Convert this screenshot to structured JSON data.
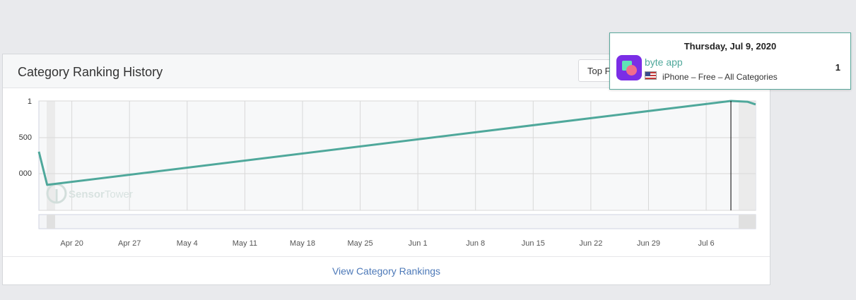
{
  "card": {
    "title": "Category Ranking History",
    "filter_button_label": "Top F",
    "footer_link": "View Category Rankings"
  },
  "tooltip": {
    "date": "Thursday, Jul 9, 2020",
    "app_name": "byte app",
    "subtitle": "iPhone – Free – All Categories",
    "rank": "1",
    "icon": "byte-app-icon",
    "flag_icon": "us-flag-icon"
  },
  "watermark": {
    "brand_a": "Sensor",
    "brand_b": "Tower"
  },
  "colors": {
    "line": "#4fa89b",
    "link": "#4d79b8",
    "tooltip_border": "#5aa89c"
  },
  "chart_data": {
    "type": "line",
    "x_tick_labels": [
      "Apr 20",
      "Apr 27",
      "May 4",
      "May 11",
      "May 18",
      "May 25",
      "Jun 1",
      "Jun 8",
      "Jun 15",
      "Jun 22",
      "Jun 29",
      "Jul 6"
    ],
    "y_tick_labels": [
      "1",
      "500",
      "000"
    ],
    "x_range": [
      "Apr 16",
      "Jul 12"
    ],
    "series": [
      {
        "points": [
          {
            "x": "Apr 16",
            "rank": 1300
          },
          {
            "x": "Apr 17",
            "rank": 2150
          },
          {
            "x": "Jul 9",
            "rank": 1
          },
          {
            "x": "Jul 11",
            "rank": 20
          },
          {
            "x": "Jul 12",
            "rank": 90
          }
        ]
      }
    ],
    "highlight_date": "Jul 9",
    "grid": true
  }
}
